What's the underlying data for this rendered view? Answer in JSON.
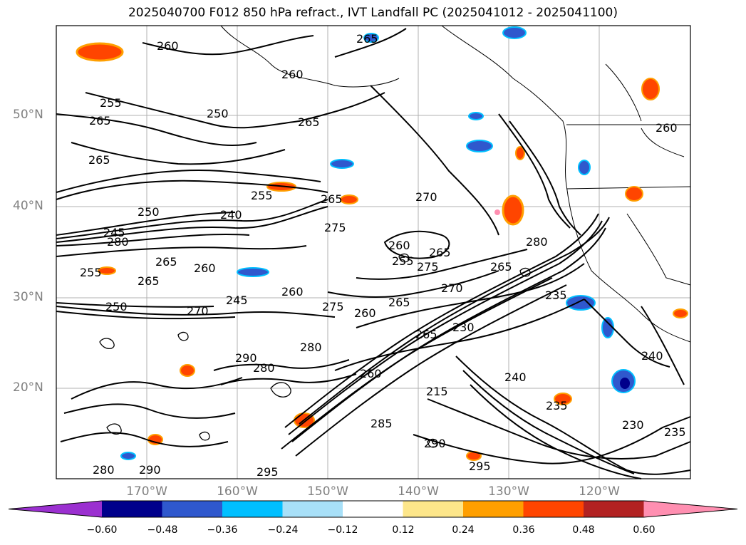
{
  "title": "2025040700 F012 850 hPa refract., IVT Landfall PC (2025041012 - 2025041100)",
  "lat_labels": [
    "50°N",
    "40°N",
    "30°N",
    "20°N"
  ],
  "lon_labels": [
    "170°W",
    "160°W",
    "150°W",
    "140°W",
    "130°W",
    "120°W"
  ],
  "contour_labels": [
    "260",
    "265",
    "255",
    "260",
    "250",
    "265",
    "265",
    "265",
    "255",
    "250",
    "240",
    "265",
    "245",
    "280",
    "270",
    "275",
    "260",
    "265",
    "255",
    "275",
    "265",
    "255",
    "265",
    "260",
    "245",
    "260",
    "280",
    "250",
    "270",
    "275",
    "260",
    "265",
    "270",
    "230",
    "280",
    "235",
    "265",
    "290",
    "280",
    "260",
    "240",
    "215",
    "265",
    "240",
    "235",
    "230",
    "235",
    "290",
    "285",
    "295",
    "290",
    "295",
    "280",
    "260"
  ],
  "colorbar": {
    "ticks": [
      "−0.60",
      "−0.48",
      "−0.36",
      "−0.24",
      "−0.12",
      "0.12",
      "0.24",
      "0.36",
      "0.48",
      "0.60"
    ],
    "colors": [
      "#9b30d0",
      "#00008b",
      "#2f58cd",
      "#00bfff",
      "#a8e0f8",
      "#ffffff",
      "#fde68a",
      "#ff9f00",
      "#ff4500",
      "#b22222",
      "#ff8fb1"
    ]
  },
  "map_colors": {
    "contour": "#000000",
    "grid": "#b0b0b0",
    "coast": "#000000"
  }
}
